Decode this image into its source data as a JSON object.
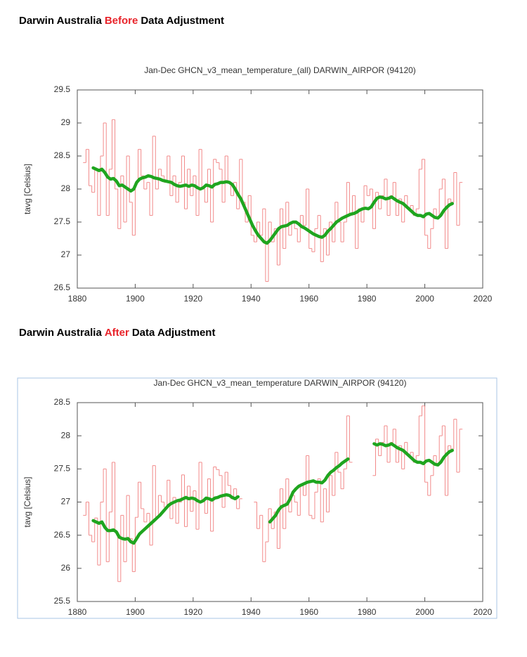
{
  "headings": [
    [
      "Darwin Australia",
      "Before",
      "Data Adjustment"
    ],
    [
      "Darwin Australia",
      "After",
      "Data Adjustment"
    ]
  ],
  "chart_data": [
    {
      "type": "step-line",
      "title": "Jan-Dec GHCN_v3_mean_temperature_(all) DARWIN_AIRPOR (94120)",
      "y_label": "tavg [Celsius]",
      "xlim": [
        1880,
        2020
      ],
      "xticks": [
        1880,
        1900,
        1920,
        1940,
        1960,
        1980,
        2000,
        2020
      ],
      "ylim": [
        26.5,
        29.5
      ],
      "yticks": [
        26.5,
        27,
        27.5,
        28,
        28.5,
        29,
        29.5
      ],
      "x": [
        1882,
        1883,
        1884,
        1885,
        1886,
        1887,
        1888,
        1889,
        1890,
        1891,
        1892,
        1893,
        1894,
        1895,
        1896,
        1897,
        1898,
        1899,
        1900,
        1901,
        1902,
        1903,
        1904,
        1905,
        1906,
        1907,
        1908,
        1909,
        1910,
        1911,
        1912,
        1913,
        1914,
        1915,
        1916,
        1917,
        1918,
        1919,
        1920,
        1921,
        1922,
        1923,
        1924,
        1925,
        1926,
        1927,
        1928,
        1929,
        1930,
        1931,
        1932,
        1933,
        1934,
        1935,
        1936,
        1937,
        1938,
        1939,
        1940,
        1941,
        1942,
        1943,
        1944,
        1945,
        1946,
        1947,
        1948,
        1949,
        1950,
        1951,
        1952,
        1953,
        1954,
        1955,
        1956,
        1957,
        1958,
        1959,
        1960,
        1961,
        1962,
        1963,
        1964,
        1965,
        1966,
        1967,
        1968,
        1969,
        1970,
        1971,
        1972,
        1973,
        1974,
        1975,
        1976,
        1977,
        1978,
        1979,
        1980,
        1981,
        1982,
        1983,
        1984,
        1985,
        1986,
        1987,
        1988,
        1989,
        1990,
        1991,
        1992,
        1993,
        1994,
        1995,
        1996,
        1997,
        1998,
        1999,
        2000,
        2001,
        2002,
        2003,
        2004,
        2005,
        2006,
        2007,
        2008,
        2009,
        2010,
        2011,
        2012
      ],
      "series": [
        {
          "color": "#f28a8a",
          "style": "step",
          "values": [
            28.4,
            28.6,
            28.05,
            27.95,
            28.3,
            27.6,
            28.5,
            29.0,
            27.6,
            28.3,
            29.05,
            28.0,
            27.4,
            28.2,
            27.5,
            28.5,
            27.8,
            27.3,
            28.1,
            28.6,
            28.2,
            28.0,
            28.1,
            27.6,
            28.8,
            28.0,
            28.3,
            28.2,
            28.1,
            28.5,
            27.9,
            28.2,
            27.8,
            28.1,
            28.5,
            27.7,
            28.3,
            27.9,
            28.2,
            27.6,
            28.6,
            28.0,
            27.8,
            28.3,
            27.5,
            28.45,
            28.4,
            28.3,
            27.8,
            28.5,
            28.1,
            27.9,
            28.1,
            27.7,
            28.45,
            27.8,
            27.5,
            27.9,
            27.3,
            27.2,
            27.5,
            27.3,
            27.7,
            26.6,
            27.5,
            27.2,
            27.4,
            26.85,
            27.7,
            27.1,
            27.8,
            27.3,
            27.5,
            27.4,
            27.2,
            27.6,
            27.45,
            28.0,
            27.1,
            27.05,
            27.4,
            27.6,
            26.9,
            27.4,
            27.0,
            27.5,
            27.2,
            27.8,
            27.5,
            27.2,
            27.5,
            28.1,
            27.6,
            27.9,
            27.1,
            27.7,
            27.5,
            28.05,
            27.9,
            28.0,
            27.4,
            27.95,
            27.7,
            27.9,
            28.15,
            27.6,
            27.9,
            28.1,
            27.6,
            27.85,
            27.5,
            27.9,
            27.7,
            27.75,
            27.6,
            27.7,
            28.3,
            28.45,
            27.3,
            27.1,
            27.4,
            27.7,
            27.55,
            28.0,
            28.15,
            27.1,
            27.85,
            27.8,
            28.25,
            27.45,
            28.1
          ]
        },
        {
          "color": "#1fa51f",
          "style": "smooth",
          "values": [
            null,
            null,
            null,
            28.32,
            28.3,
            28.28,
            28.3,
            28.25,
            28.18,
            28.15,
            28.16,
            28.12,
            28.05,
            28.06,
            28.03,
            28.0,
            27.97,
            28.0,
            28.1,
            28.15,
            28.17,
            28.18,
            28.2,
            28.19,
            28.17,
            28.16,
            28.15,
            28.13,
            28.12,
            28.11,
            28.1,
            28.07,
            28.05,
            28.04,
            28.05,
            28.06,
            28.04,
            28.06,
            28.05,
            28.02,
            28.0,
            28.02,
            28.06,
            28.05,
            28.03,
            28.07,
            28.08,
            28.1,
            28.1,
            28.11,
            28.1,
            28.07,
            28.0,
            27.92,
            27.85,
            27.75,
            27.65,
            27.55,
            27.45,
            27.37,
            27.3,
            27.25,
            27.2,
            27.18,
            27.22,
            27.28,
            27.34,
            27.4,
            27.43,
            27.44,
            27.45,
            27.48,
            27.5,
            27.5,
            27.47,
            27.43,
            27.41,
            27.38,
            27.35,
            27.32,
            27.3,
            27.28,
            27.27,
            27.3,
            27.36,
            27.4,
            27.45,
            27.5,
            27.53,
            27.56,
            27.58,
            27.6,
            27.62,
            27.63,
            27.65,
            27.68,
            27.7,
            27.71,
            27.7,
            27.73,
            27.8,
            27.86,
            27.88,
            27.87,
            27.85,
            27.86,
            27.88,
            27.85,
            27.82,
            27.8,
            27.78,
            27.74,
            27.7,
            27.66,
            27.62,
            27.6,
            27.6,
            27.58,
            27.62,
            27.63,
            27.6,
            27.57,
            27.56,
            27.6,
            27.67,
            27.72,
            27.76,
            27.78,
            null,
            null,
            null
          ]
        }
      ]
    },
    {
      "type": "step-line",
      "title": "Jan-Dec GHCN_v3_mean_temperature DARWIN_AIRPOR (94120)",
      "y_label": "tavg [Celsius]",
      "xlim": [
        1880,
        2020
      ],
      "xticks": [
        1880,
        1900,
        1920,
        1940,
        1960,
        1980,
        2000,
        2020
      ],
      "ylim": [
        25.5,
        28.5
      ],
      "yticks": [
        25.5,
        26,
        26.5,
        27,
        27.5,
        28,
        28.5
      ],
      "x": [
        1882,
        1883,
        1884,
        1885,
        1886,
        1887,
        1888,
        1889,
        1890,
        1891,
        1892,
        1893,
        1894,
        1895,
        1896,
        1897,
        1898,
        1899,
        1900,
        1901,
        1902,
        1903,
        1904,
        1905,
        1906,
        1907,
        1908,
        1909,
        1910,
        1911,
        1912,
        1913,
        1914,
        1915,
        1916,
        1917,
        1918,
        1919,
        1920,
        1921,
        1922,
        1923,
        1924,
        1925,
        1926,
        1927,
        1928,
        1929,
        1930,
        1931,
        1932,
        1933,
        1934,
        1935,
        1936,
        1937,
        1938,
        1939,
        1940,
        1941,
        1942,
        1943,
        1944,
        1945,
        1946,
        1947,
        1948,
        1949,
        1950,
        1951,
        1952,
        1953,
        1954,
        1955,
        1956,
        1957,
        1958,
        1959,
        1960,
        1961,
        1962,
        1963,
        1964,
        1965,
        1966,
        1967,
        1968,
        1969,
        1970,
        1971,
        1972,
        1973,
        1974,
        1975,
        1976,
        1977,
        1978,
        1979,
        1980,
        1981,
        1982,
        1983,
        1984,
        1985,
        1986,
        1987,
        1988,
        1989,
        1990,
        1991,
        1992,
        1993,
        1994,
        1995,
        1996,
        1997,
        1998,
        1999,
        2000,
        2001,
        2002,
        2003,
        2004,
        2005,
        2006,
        2007,
        2008,
        2009,
        2010,
        2011,
        2012
      ],
      "series": [
        {
          "color": "#f28a8a",
          "style": "step",
          "values": [
            26.8,
            27.0,
            26.5,
            26.4,
            26.76,
            26.05,
            27.0,
            27.5,
            26.1,
            26.85,
            27.6,
            26.55,
            25.8,
            26.8,
            26.1,
            27.1,
            26.45,
            25.95,
            26.77,
            27.3,
            26.9,
            26.7,
            26.83,
            26.35,
            27.55,
            26.78,
            27.1,
            27.0,
            26.92,
            27.33,
            26.75,
            27.07,
            26.68,
            27.0,
            27.41,
            26.63,
            27.24,
            26.86,
            27.17,
            26.59,
            27.6,
            27.02,
            26.83,
            27.35,
            26.56,
            27.53,
            27.49,
            27.4,
            26.92,
            27.45,
            27.25,
            27.05,
            27.2,
            26.9,
            27.05,
            null,
            null,
            null,
            null,
            27.0,
            26.6,
            26.8,
            26.1,
            26.4,
            26.9,
            26.6,
            26.85,
            26.3,
            27.2,
            26.6,
            27.35,
            26.85,
            27.1,
            27.0,
            26.8,
            27.25,
            27.1,
            27.7,
            26.8,
            26.75,
            27.15,
            27.35,
            26.7,
            27.2,
            26.85,
            27.4,
            27.1,
            27.75,
            27.45,
            27.2,
            27.5,
            28.3,
            27.6,
            null,
            null,
            null,
            null,
            null,
            null,
            null,
            27.4,
            27.95,
            27.7,
            27.9,
            28.15,
            27.6,
            27.9,
            28.1,
            27.6,
            27.85,
            27.5,
            27.9,
            27.7,
            27.75,
            27.6,
            27.7,
            28.3,
            28.45,
            27.3,
            27.1,
            27.4,
            27.7,
            27.55,
            28.0,
            28.15,
            27.1,
            27.85,
            27.8,
            28.25,
            27.45,
            28.1
          ]
        },
        {
          "color": "#1fa51f",
          "style": "smooth",
          "values": [
            null,
            null,
            null,
            26.72,
            26.7,
            26.68,
            26.7,
            26.62,
            26.57,
            26.57,
            26.58,
            26.55,
            26.47,
            26.45,
            26.44,
            26.45,
            26.4,
            26.38,
            26.45,
            26.52,
            26.56,
            26.6,
            26.64,
            26.68,
            26.72,
            26.76,
            26.8,
            26.85,
            26.9,
            26.95,
            26.98,
            27.0,
            27.02,
            27.03,
            27.05,
            27.07,
            27.05,
            27.06,
            27.05,
            27.02,
            27.0,
            27.02,
            27.06,
            27.05,
            27.03,
            27.06,
            27.07,
            27.09,
            27.1,
            27.11,
            27.1,
            27.07,
            27.05,
            27.08,
            null,
            null,
            null,
            null,
            null,
            null,
            null,
            null,
            null,
            null,
            26.7,
            26.75,
            26.8,
            26.88,
            26.93,
            26.95,
            26.97,
            27.05,
            27.15,
            27.2,
            27.24,
            27.26,
            27.28,
            27.3,
            27.31,
            27.32,
            27.3,
            27.3,
            27.29,
            27.33,
            27.4,
            27.45,
            27.48,
            27.52,
            27.55,
            27.59,
            27.62,
            27.65,
            null,
            null,
            null,
            null,
            null,
            null,
            null,
            null,
            27.88,
            27.86,
            27.88,
            27.87,
            27.85,
            27.86,
            27.88,
            27.85,
            27.82,
            27.8,
            27.78,
            27.74,
            27.7,
            27.66,
            27.62,
            27.6,
            27.6,
            27.58,
            27.62,
            27.63,
            27.6,
            27.57,
            27.56,
            27.6,
            27.67,
            27.72,
            27.76,
            27.78,
            null,
            null,
            null
          ]
        }
      ]
    }
  ]
}
